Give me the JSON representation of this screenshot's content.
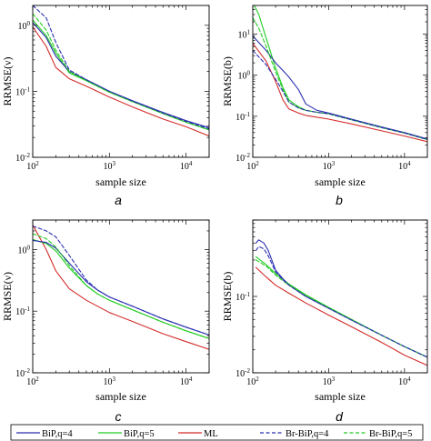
{
  "colors": {
    "BiP_q4": "#2b2fb0",
    "BiP_q5": "#22cc22",
    "ML": "#d42b2b",
    "BrBiP_q4": "#2b2fb0",
    "BrBiP_q5": "#22cc22"
  },
  "chart_data": [
    {
      "panel": "a",
      "type": "line",
      "ylabel": "RRMSE(ν)",
      "xlabel": "sample size",
      "xscale": "log",
      "yscale": "log",
      "xlim": [
        100,
        20000
      ],
      "ylim": [
        0.01,
        2
      ],
      "xticklabels": [
        "10^2",
        "10^3",
        "10^4"
      ],
      "yticklabels": [
        "10^-2",
        "10^-1",
        "10^0"
      ],
      "series": [
        {
          "key": "BiP_q4",
          "x": [
            100,
            150,
            200,
            300,
            500,
            1000,
            2000,
            5000,
            10000,
            20000
          ],
          "y": [
            1.1,
            0.65,
            0.34,
            0.2,
            0.15,
            0.1,
            0.072,
            0.048,
            0.036,
            0.028
          ]
        },
        {
          "key": "BiP_q5",
          "x": [
            100,
            150,
            200,
            300,
            500,
            1000,
            2000,
            5000,
            10000,
            20000
          ],
          "y": [
            1.2,
            0.7,
            0.38,
            0.19,
            0.145,
            0.097,
            0.07,
            0.046,
            0.034,
            0.026
          ]
        },
        {
          "key": "ML",
          "x": [
            100,
            150,
            200,
            300,
            500,
            1000,
            2000,
            5000,
            10000,
            20000
          ],
          "y": [
            0.95,
            0.48,
            0.23,
            0.155,
            0.12,
            0.082,
            0.058,
            0.038,
            0.029,
            0.021
          ]
        },
        {
          "key": "BrBiP_q4",
          "x": [
            100,
            150,
            200,
            300,
            500,
            1000,
            2000,
            5000,
            10000,
            20000
          ],
          "y": [
            2.0,
            1.3,
            0.55,
            0.21,
            0.15,
            0.1,
            0.071,
            0.047,
            0.035,
            0.027
          ]
        },
        {
          "key": "BrBiP_q5",
          "x": [
            100,
            150,
            200,
            300,
            500,
            1000,
            2000,
            5000,
            10000,
            20000
          ],
          "y": [
            1.5,
            0.85,
            0.42,
            0.2,
            0.145,
            0.097,
            0.07,
            0.046,
            0.034,
            0.026
          ]
        }
      ]
    },
    {
      "panel": "b",
      "type": "line",
      "ylabel": "RRMSE(b)",
      "xlabel": "sample size",
      "xscale": "log",
      "yscale": "log",
      "xlim": [
        100,
        20000
      ],
      "ylim": [
        0.01,
        50
      ],
      "xticklabels": [
        "10^2",
        "10^3",
        "10^4"
      ],
      "yticklabels": [
        "10^-2",
        "10^-1",
        "10^0",
        "10^1"
      ],
      "series": [
        {
          "key": "BiP_q4",
          "x": [
            100,
            150,
            200,
            250,
            300,
            400,
            500,
            700,
            1000,
            2000,
            5000,
            10000,
            20000
          ],
          "y": [
            9.0,
            4.0,
            2.0,
            1.3,
            0.9,
            0.45,
            0.2,
            0.14,
            0.12,
            0.085,
            0.055,
            0.04,
            0.028
          ]
        },
        {
          "key": "BiP_q5",
          "x": [
            100,
            120,
            150,
            200,
            250,
            300,
            400,
            500,
            700,
            1000,
            2000,
            5000,
            10000,
            20000
          ],
          "y": [
            60,
            30,
            8,
            1.5,
            0.5,
            0.25,
            0.17,
            0.14,
            0.125,
            0.115,
            0.082,
            0.053,
            0.039,
            0.027
          ]
        },
        {
          "key": "ML",
          "x": [
            100,
            150,
            200,
            250,
            300,
            400,
            500,
            700,
            1000,
            2000,
            5000,
            10000,
            20000
          ],
          "y": [
            6.0,
            2.2,
            0.7,
            0.25,
            0.15,
            0.12,
            0.105,
            0.095,
            0.085,
            0.065,
            0.044,
            0.033,
            0.024
          ]
        },
        {
          "key": "BrBiP_q4",
          "x": [
            100,
            150,
            200,
            250,
            300,
            400,
            500,
            700,
            1000,
            2000,
            5000,
            10000,
            20000
          ],
          "y": [
            4.0,
            1.8,
            0.8,
            0.4,
            0.22,
            0.16,
            0.14,
            0.125,
            0.115,
            0.082,
            0.053,
            0.039,
            0.027
          ]
        },
        {
          "key": "BrBiP_q5",
          "x": [
            100,
            120,
            150,
            200,
            250,
            300,
            400,
            500,
            700,
            1000,
            2000,
            5000,
            10000,
            20000
          ],
          "y": [
            25,
            14,
            5,
            1.2,
            0.45,
            0.22,
            0.16,
            0.14,
            0.125,
            0.115,
            0.082,
            0.053,
            0.039,
            0.027
          ]
        }
      ]
    },
    {
      "panel": "c",
      "type": "line",
      "ylabel": "RRMSE(ν)",
      "xlabel": "sample size",
      "xscale": "log",
      "yscale": "log",
      "xlim": [
        100,
        20000
      ],
      "ylim": [
        0.01,
        3
      ],
      "xticklabels": [
        "10^2",
        "10^3",
        "10^4"
      ],
      "yticklabels": [
        "10^-2",
        "10^-1",
        "10^0"
      ],
      "series": [
        {
          "key": "BiP_q4",
          "x": [
            100,
            150,
            200,
            300,
            500,
            700,
            1000,
            2000,
            5000,
            10000,
            20000
          ],
          "y": [
            1.4,
            1.3,
            1.05,
            0.6,
            0.3,
            0.22,
            0.17,
            0.12,
            0.075,
            0.055,
            0.041
          ]
        },
        {
          "key": "BiP_q5",
          "x": [
            100,
            150,
            200,
            300,
            500,
            700,
            1000,
            2000,
            5000,
            10000,
            20000
          ],
          "y": [
            1.45,
            1.25,
            0.95,
            0.5,
            0.26,
            0.19,
            0.15,
            0.105,
            0.066,
            0.048,
            0.036
          ]
        },
        {
          "key": "ML",
          "x": [
            100,
            150,
            200,
            300,
            500,
            700,
            1000,
            2000,
            5000,
            10000,
            20000
          ],
          "y": [
            2.5,
            1.0,
            0.45,
            0.23,
            0.15,
            0.12,
            0.095,
            0.068,
            0.043,
            0.032,
            0.024
          ]
        },
        {
          "key": "BrBiP_q4",
          "x": [
            100,
            150,
            200,
            300,
            500,
            700,
            1000,
            2000,
            5000,
            10000,
            20000
          ],
          "y": [
            2.4,
            2.0,
            1.6,
            0.8,
            0.32,
            0.22,
            0.17,
            0.12,
            0.075,
            0.055,
            0.041
          ]
        },
        {
          "key": "BrBiP_q5",
          "x": [
            100,
            150,
            200,
            300,
            500,
            700,
            1000,
            2000,
            5000,
            10000,
            20000
          ],
          "y": [
            1.8,
            1.5,
            1.1,
            0.55,
            0.26,
            0.19,
            0.15,
            0.105,
            0.066,
            0.048,
            0.036
          ]
        }
      ]
    },
    {
      "panel": "d",
      "type": "line",
      "ylabel": "RRMSE(b)",
      "xlabel": "sample size",
      "xscale": "log",
      "yscale": "log",
      "xlim": [
        100,
        20000
      ],
      "ylim": [
        0.01,
        1
      ],
      "xticklabels": [
        "10^2",
        "10^3",
        "10^4"
      ],
      "yticklabels": [
        "10^-2",
        "10^-1"
      ],
      "series": [
        {
          "key": "BiP_q4",
          "x": [
            110,
            120,
            140,
            160,
            200,
            250,
            300,
            500,
            1000,
            2000,
            5000,
            10000,
            20000
          ],
          "y": [
            0.5,
            0.55,
            0.5,
            0.4,
            0.22,
            0.17,
            0.14,
            0.1,
            0.07,
            0.049,
            0.031,
            0.022,
            0.016
          ]
        },
        {
          "key": "BiP_q5",
          "x": [
            110,
            150,
            200,
            300,
            500,
            1000,
            2000,
            5000,
            10000,
            20000
          ],
          "y": [
            0.33,
            0.26,
            0.2,
            0.145,
            0.105,
            0.072,
            0.05,
            0.031,
            0.022,
            0.016
          ]
        },
        {
          "key": "ML",
          "x": [
            110,
            150,
            200,
            300,
            500,
            1000,
            2000,
            5000,
            10000,
            20000
          ],
          "y": [
            0.24,
            0.18,
            0.14,
            0.11,
            0.082,
            0.057,
            0.04,
            0.025,
            0.017,
            0.0125
          ]
        },
        {
          "key": "BrBiP_q4",
          "x": [
            110,
            120,
            140,
            160,
            200,
            250,
            300,
            500,
            1000,
            2000,
            5000,
            10000,
            20000
          ],
          "y": [
            0.4,
            0.45,
            0.42,
            0.34,
            0.21,
            0.165,
            0.14,
            0.1,
            0.07,
            0.049,
            0.031,
            0.022,
            0.016
          ]
        },
        {
          "key": "BrBiP_q5",
          "x": [
            110,
            150,
            200,
            300,
            500,
            1000,
            2000,
            5000,
            10000,
            20000
          ],
          "y": [
            0.3,
            0.25,
            0.19,
            0.14,
            0.103,
            0.071,
            0.05,
            0.031,
            0.022,
            0.016
          ]
        }
      ]
    }
  ],
  "legend": [
    {
      "key": "BiP_q4",
      "label": "BiP,q=4",
      "dash": false
    },
    {
      "key": "BiP_q5",
      "label": "BiP,q=5",
      "dash": false
    },
    {
      "key": "ML",
      "label": "ML",
      "dash": false
    },
    {
      "key": "BrBiP_q4",
      "label": "Br-BiP,q=4",
      "dash": true
    },
    {
      "key": "BrBiP_q5",
      "label": "Br-BiP,q=5",
      "dash": true
    }
  ]
}
